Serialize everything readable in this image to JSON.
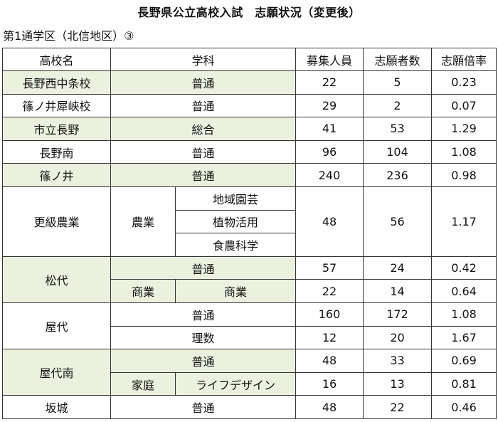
{
  "title": "長野県公立高校入試　志願状況（変更後）",
  "subtitle": "第1通学区（北信地区）③",
  "headers": [
    "高校名",
    "学科",
    "募集人員",
    "志願者数",
    "志願倍率"
  ],
  "rows": [
    {
      "school": "長野西中条校",
      "course": "普通",
      "quota": "22",
      "applicants": "5",
      "ratio": "0.23"
    },
    {
      "school": "篠ノ井犀峡校",
      "course": "普通",
      "quota": "29",
      "applicants": "2",
      "ratio": "0.07"
    },
    {
      "school": "市立長野",
      "course": "総合",
      "quota": "41",
      "applicants": "53",
      "ratio": "1.29"
    },
    {
      "school": "長野南",
      "course": "普通",
      "quota": "96",
      "applicants": "104",
      "ratio": "1.08"
    },
    {
      "school": "篠ノ井",
      "course": "普通",
      "quota": "240",
      "applicants": "236",
      "ratio": "0.98"
    }
  ],
  "kokyu": {
    "school": "更級農業",
    "dept": "農業",
    "courses": [
      "地域園芸",
      "植物活用",
      "食農科学"
    ],
    "quota": "48",
    "applicants": "56",
    "ratio": "1.17"
  },
  "matsushiro": {
    "school": "松代",
    "rows": [
      {
        "course": "普通",
        "quota": "57",
        "applicants": "24",
        "ratio": "0.42"
      },
      {
        "dept": "商業",
        "course": "商業",
        "quota": "22",
        "applicants": "14",
        "ratio": "0.64"
      }
    ]
  },
  "yashiro": {
    "school": "屋代",
    "rows": [
      {
        "course": "普通",
        "quota": "160",
        "applicants": "172",
        "ratio": "1.08"
      },
      {
        "course": "理数",
        "quota": "12",
        "applicants": "20",
        "ratio": "1.67"
      }
    ]
  },
  "yashiro_minami": {
    "school": "屋代南",
    "rows": [
      {
        "course": "普通",
        "quota": "48",
        "applicants": "33",
        "ratio": "0.69"
      },
      {
        "dept": "家庭",
        "course": "ライフデザイン",
        "quota": "16",
        "applicants": "13",
        "ratio": "0.81"
      }
    ]
  },
  "sakaki": {
    "school": "坂城",
    "course": "普通",
    "quota": "48",
    "applicants": "22",
    "ratio": "0.46"
  }
}
